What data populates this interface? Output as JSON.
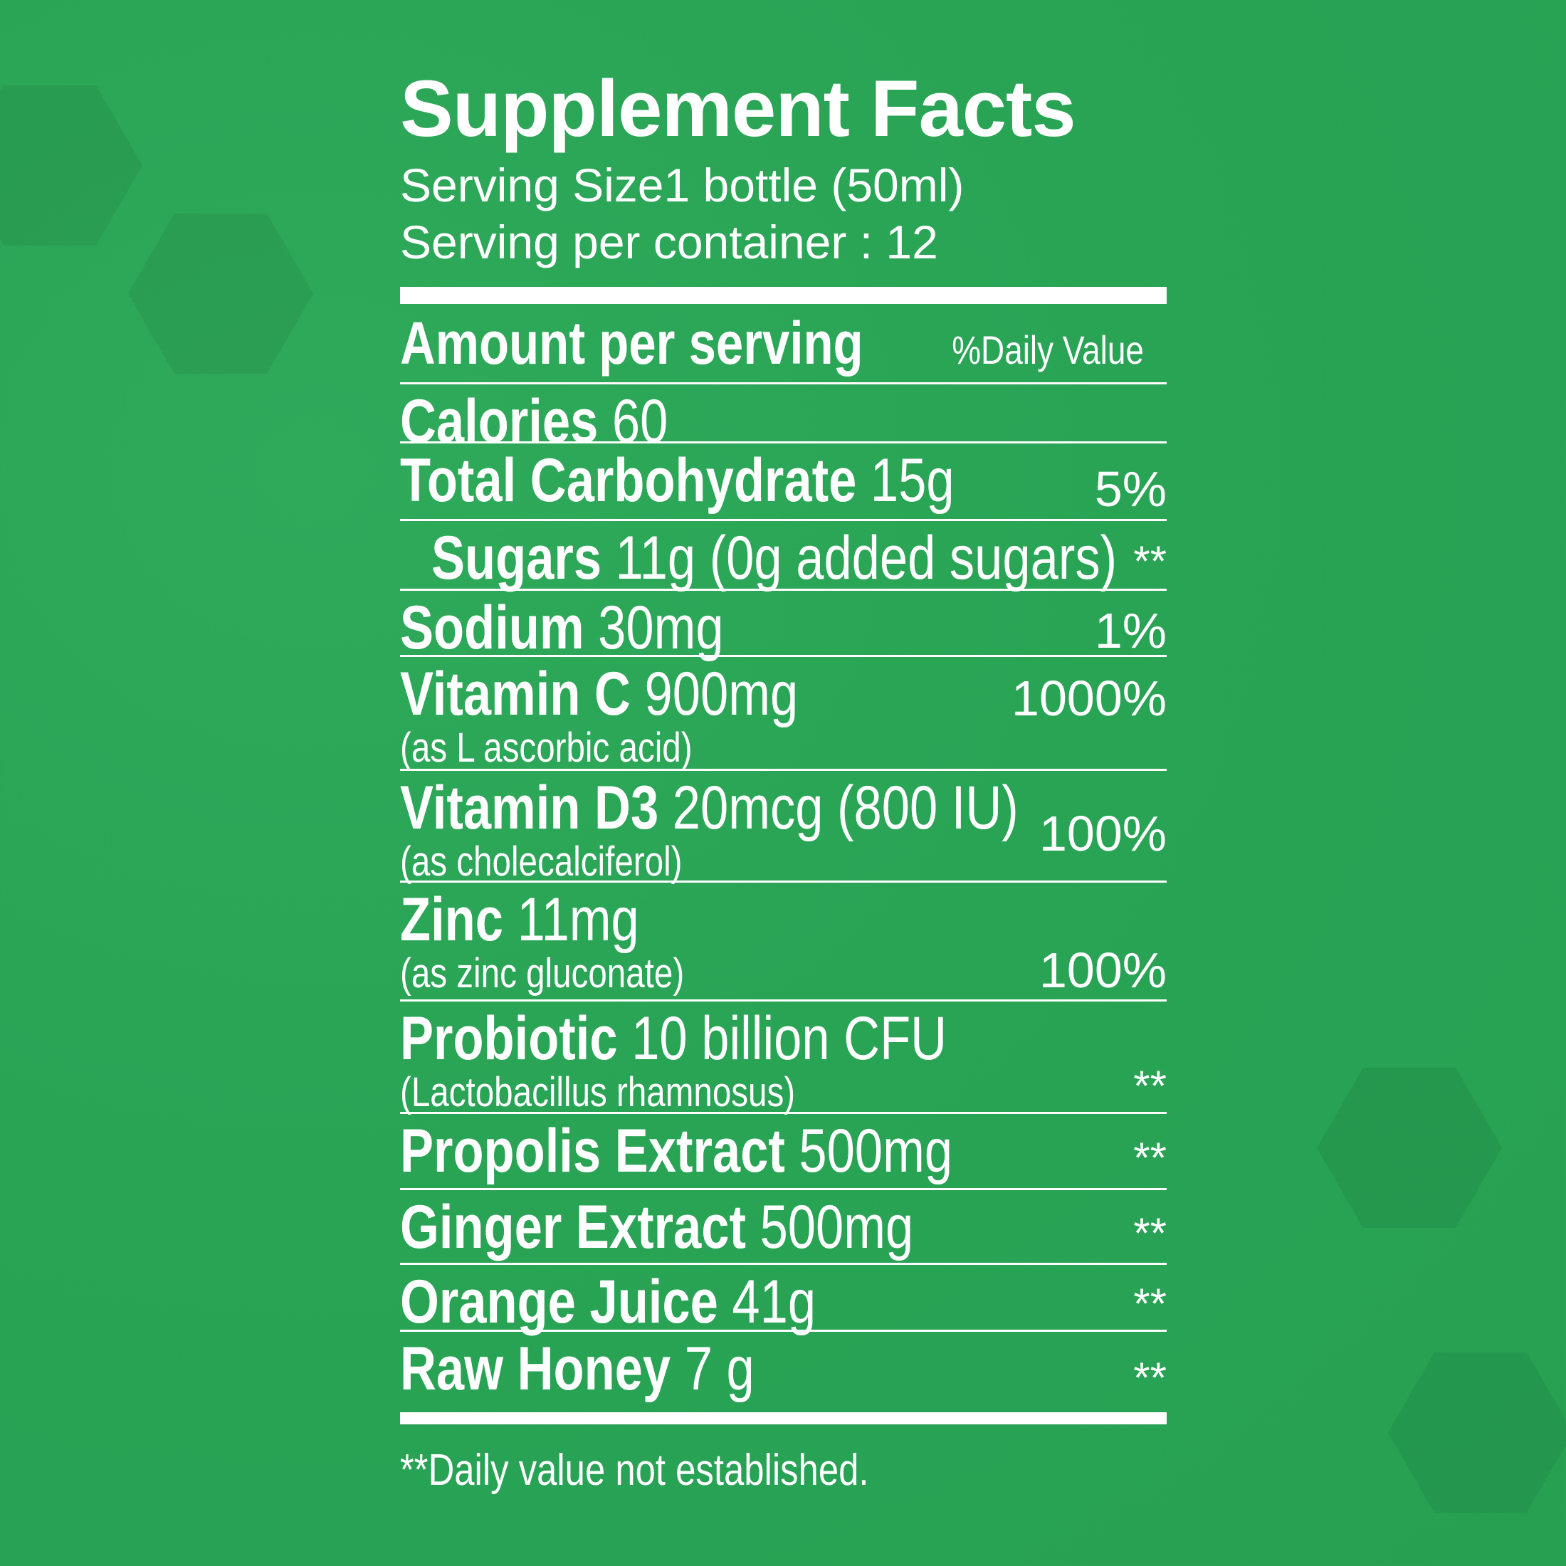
{
  "title": "Supplement Facts",
  "serving_size": "Serving Size1 bottle (50ml)",
  "servings_per_container": "Serving per container : 12",
  "header": {
    "amount": "Amount per serving",
    "dv": "%Daily Value"
  },
  "rows": [
    {
      "name": "Calories",
      "amount": "60",
      "note": "",
      "dv": ""
    },
    {
      "name": "Total Carbohydrate",
      "amount": "15g",
      "note": "",
      "dv": "5%"
    },
    {
      "name": "Sugars",
      "amount": "11g (0g added sugars)",
      "note": "",
      "dv": "**"
    },
    {
      "name": "Sodium",
      "amount": "30mg",
      "note": "",
      "dv": "1%"
    },
    {
      "name": "Vitamin C",
      "amount": "900mg",
      "note": "(as L ascorbic acid)",
      "dv": "1000%"
    },
    {
      "name": "Vitamin D3",
      "amount": "20mcg (800 IU)",
      "note": "(as cholecalciferol)",
      "dv": "100%"
    },
    {
      "name": "Zinc",
      "amount": "11mg",
      "note": "(as zinc gluconate)",
      "dv": "100%"
    },
    {
      "name": "Probiotic",
      "amount": "10 billion CFU",
      "note": "(Lactobacillus rhamnosus)",
      "dv": "**"
    },
    {
      "name": "Propolis Extract",
      "amount": "500mg",
      "note": "",
      "dv": "**"
    },
    {
      "name": "Ginger Extract",
      "amount": "500mg",
      "note": "",
      "dv": "**"
    },
    {
      "name": "Orange Juice",
      "amount": "41g",
      "note": "",
      "dv": "**"
    },
    {
      "name": "Raw Honey",
      "amount": "7 g",
      "note": "",
      "dv": "**"
    }
  ],
  "footnote": "**Daily value not established.",
  "colors": {
    "background": "#29a455",
    "text": "#ffffff"
  }
}
